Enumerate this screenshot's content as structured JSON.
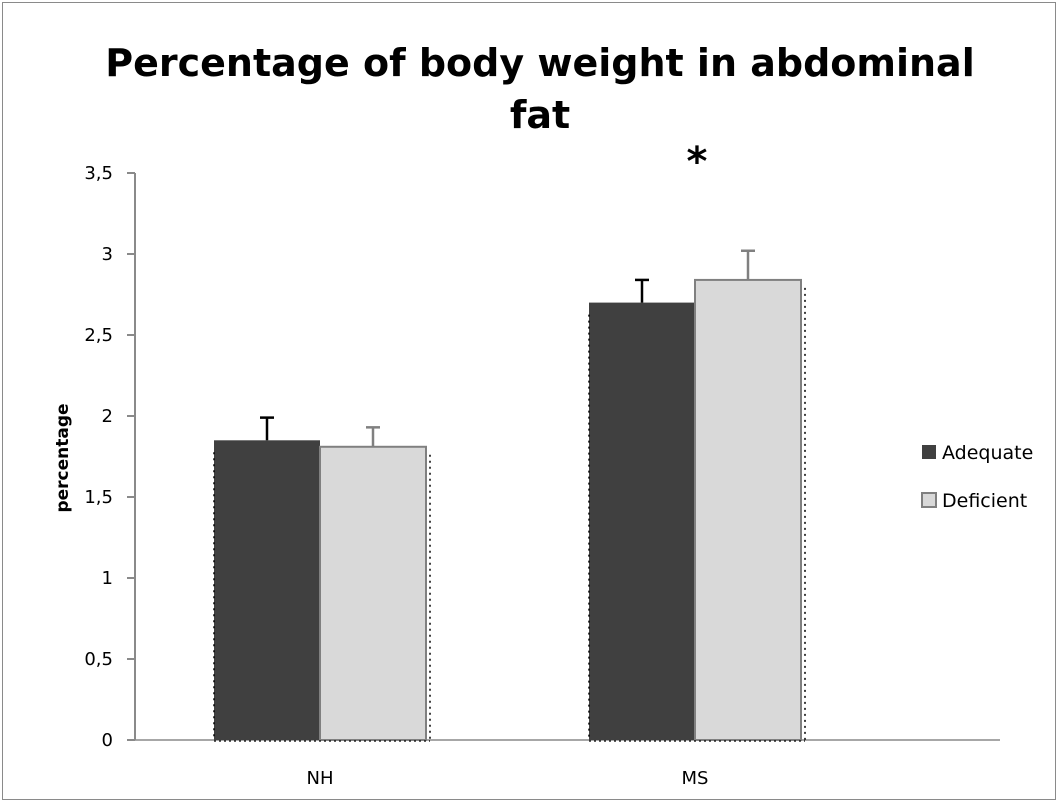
{
  "chart_data": {
    "type": "bar",
    "title_lines": [
      "Percentage of body weight in abdominal",
      "fat"
    ],
    "xlabel": "",
    "ylabel": "percentage",
    "categories": [
      "NH",
      "MS"
    ],
    "ylim": [
      0,
      3.5
    ],
    "yticks": [
      "0",
      "0,5",
      "1",
      "1,5",
      "2",
      "2,5",
      "3",
      "3,5"
    ],
    "ytick_values": [
      0,
      0.5,
      1,
      1.5,
      2,
      2.5,
      3,
      3.5
    ],
    "series": [
      {
        "name": "Adequate",
        "values": [
          1.85,
          2.7
        ],
        "errors": [
          0.14,
          0.14
        ],
        "color": "#404040",
        "error_color": "#000000"
      },
      {
        "name": "Deficient",
        "values": [
          1.81,
          2.84
        ],
        "errors": [
          0.12,
          0.18
        ],
        "color": "#d9d9d9",
        "stroke": "#808080",
        "error_color": "#808080"
      }
    ],
    "annotations": [
      {
        "text": "*",
        "category": "MS"
      }
    ],
    "legend": {
      "position": "right"
    },
    "grid": false
  }
}
